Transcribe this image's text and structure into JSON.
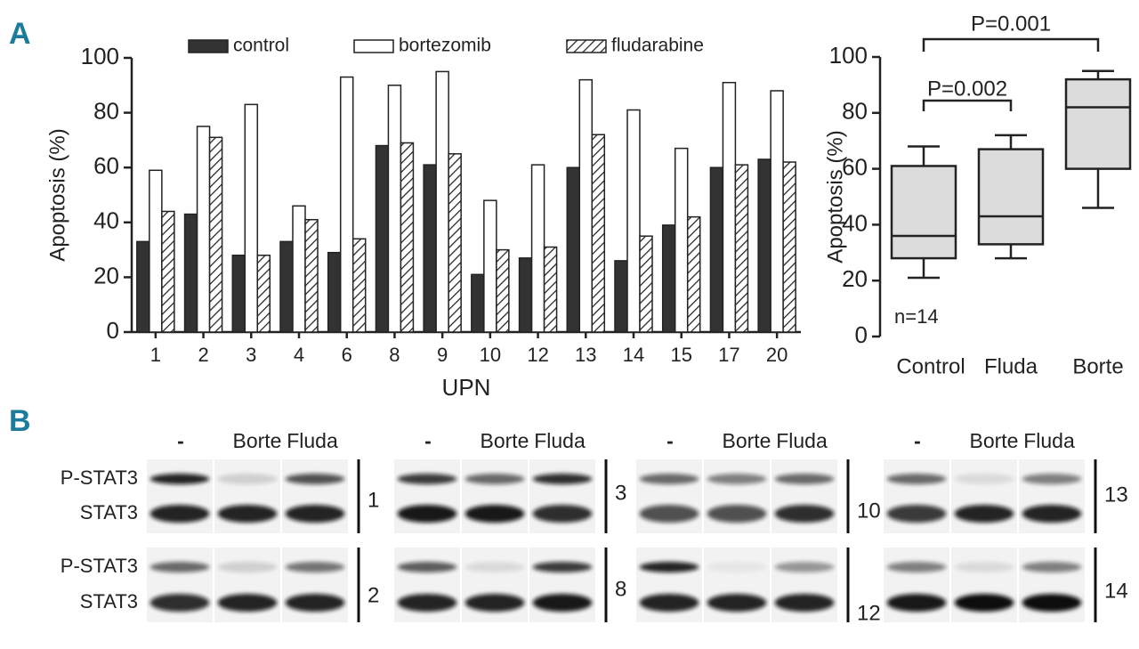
{
  "panel_labels": [
    "A",
    "B"
  ],
  "chart_data": [
    {
      "type": "bar",
      "y_label": "Apoptosis (%)",
      "x_label": "UPN",
      "categories": [
        "1",
        "2",
        "3",
        "4",
        "6",
        "8",
        "9",
        "10",
        "12",
        "13",
        "14",
        "15",
        "17",
        "20"
      ],
      "series": [
        {
          "name": "control",
          "color": "#333333",
          "pattern": "solid",
          "values": [
            33,
            43,
            28,
            33,
            29,
            68,
            61,
            21,
            27,
            60,
            26,
            39,
            60,
            63
          ]
        },
        {
          "name": "bortezomib",
          "color": "#ffffff",
          "pattern": "solid",
          "values": [
            59,
            75,
            83,
            46,
            93,
            90,
            95,
            48,
            61,
            92,
            81,
            67,
            91,
            88
          ]
        },
        {
          "name": "fludarabine",
          "color": "#ffffff",
          "pattern": "hatch",
          "values": [
            44,
            71,
            28,
            41,
            34,
            69,
            65,
            30,
            31,
            72,
            35,
            42,
            61,
            62
          ]
        }
      ],
      "ylim": [
        0,
        100
      ],
      "yticks": [
        0,
        20,
        40,
        60,
        80,
        100
      ],
      "legend": "top"
    },
    {
      "type": "box",
      "y_label": "Apoptosis (%)",
      "color": "#dcdcdc",
      "categories": [
        "Control",
        "Fluda",
        "Borte"
      ],
      "boxes": [
        {
          "min": 21,
          "q1": 28,
          "median": 36,
          "q3": 61,
          "max": 68
        },
        {
          "min": 28,
          "q1": 33,
          "median": 43,
          "q3": 67,
          "max": 72
        },
        {
          "min": 46,
          "q1": 60,
          "median": 82,
          "q3": 92,
          "max": 95
        }
      ],
      "ylim": [
        0,
        100
      ],
      "yticks": [
        0,
        20,
        40,
        60,
        80,
        100
      ],
      "annotations": [
        "P=0.001",
        "P=0.002",
        "n=14"
      ]
    }
  ],
  "blots": {
    "row_labels": [
      [
        "P-STAT3",
        "STAT3"
      ],
      [
        "P-STAT3",
        "STAT3"
      ]
    ],
    "columns": [
      {
        "headers": [
          "-",
          "Borte",
          "Fluda"
        ],
        "upn": [
          "1",
          "2"
        ]
      },
      {
        "headers": [
          "-",
          "Borte",
          "Fluda"
        ],
        "upn": [
          "3",
          "8"
        ]
      },
      {
        "headers": [
          "-",
          "Borte",
          "Fluda"
        ],
        "upn": [
          "10",
          "12"
        ]
      },
      {
        "headers": [
          "-",
          "Borte",
          "Fluda"
        ],
        "upn": [
          "13",
          "14"
        ]
      }
    ]
  }
}
